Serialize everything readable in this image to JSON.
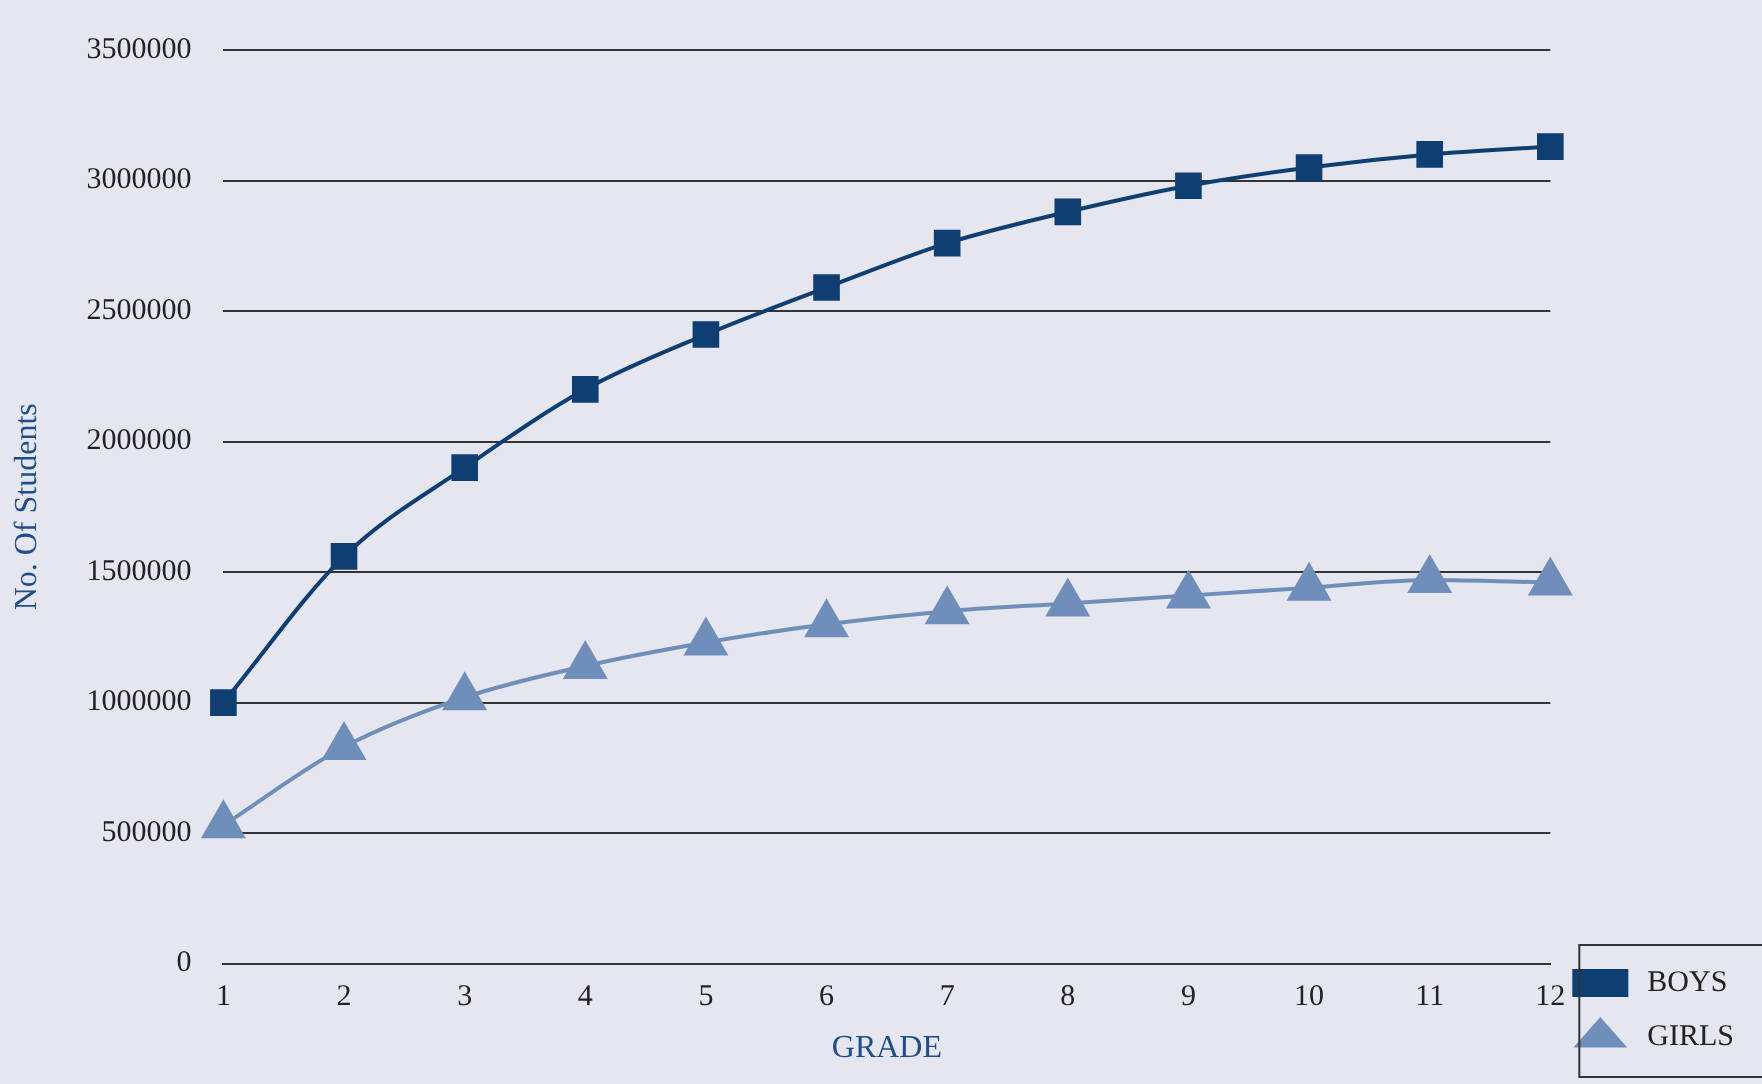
{
  "chart_data": {
    "type": "line",
    "xlabel": "GRADE",
    "ylabel": "No. Of Students",
    "x": [
      1,
      2,
      3,
      4,
      5,
      6,
      7,
      8,
      9,
      10,
      11,
      12
    ],
    "series": [
      {
        "name": "BOYS",
        "color": "#0f3f72",
        "marker": "square",
        "values": [
          1000000,
          1560000,
          1900000,
          2200000,
          2410000,
          2590000,
          2760000,
          2880000,
          2980000,
          3050000,
          3100000,
          3130000
        ]
      },
      {
        "name": "GIRLS",
        "color": "#6f8fba",
        "marker": "triangle",
        "values": [
          530000,
          830000,
          1020000,
          1140000,
          1230000,
          1300000,
          1350000,
          1380000,
          1410000,
          1440000,
          1470000,
          1460000
        ]
      }
    ],
    "xlim": [
      1,
      12
    ],
    "xticks": [
      1,
      2,
      3,
      4,
      5,
      6,
      7,
      8,
      9,
      10,
      11,
      12
    ],
    "ylim": [
      0,
      3500000
    ],
    "yticks": [
      0,
      500000,
      1000000,
      1500000,
      2000000,
      2500000,
      3000000,
      3500000
    ],
    "grid": "y",
    "legend": "right"
  }
}
